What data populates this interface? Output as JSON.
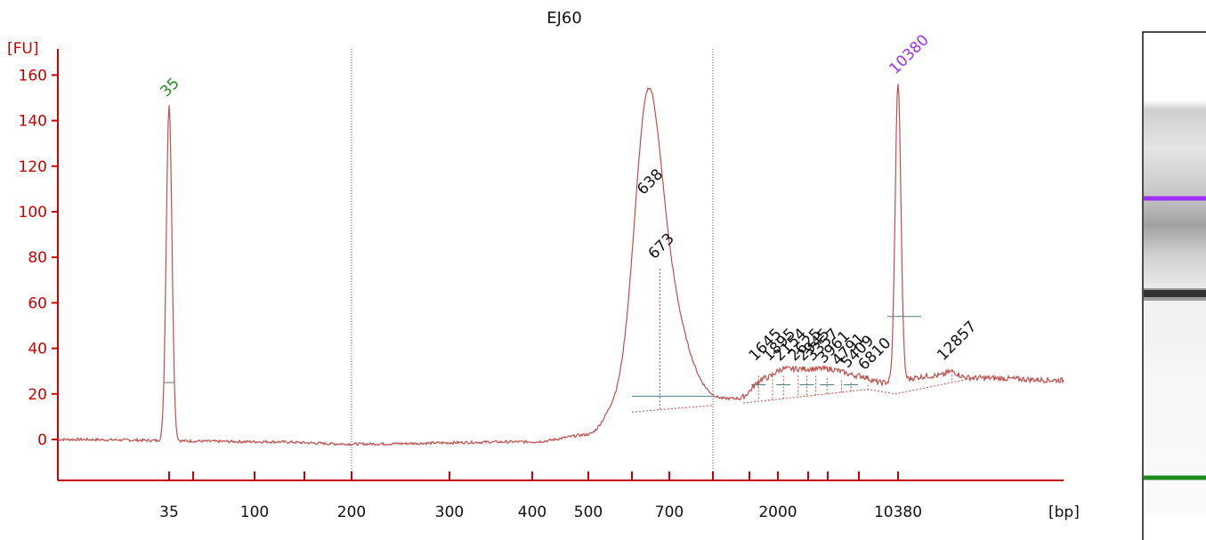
{
  "chart_data": {
    "type": "line",
    "title": "EJ60",
    "ylabel": "[FU]",
    "xlabel": "[bp]",
    "ylim": [
      -18,
      170
    ],
    "yticks": [
      0,
      20,
      40,
      60,
      80,
      100,
      120,
      140,
      160
    ],
    "x_scale": "electrophoretic ladder (non-linear)",
    "xticks": [
      "35",
      "100",
      "200",
      "300",
      "400",
      "500",
      "700",
      "2000",
      "10380"
    ],
    "grid": "vertical dotted lines at 200 bp and 1000 bp",
    "markers": [
      {
        "label": "35",
        "role": "lower marker",
        "color": "#1e8c1e",
        "height": 147
      },
      {
        "label": "10380",
        "role": "upper marker",
        "color": "#9b30ff",
        "height": 157
      }
    ],
    "peaks": [
      {
        "label": "638",
        "height": 104
      },
      {
        "label": "673",
        "height": 75
      },
      {
        "label": "1645",
        "height": 31
      },
      {
        "label": "1895",
        "height": 31
      },
      {
        "label": "2154",
        "height": 31
      },
      {
        "label": "2625",
        "height": 31
      },
      {
        "label": "2945",
        "height": 31
      },
      {
        "label": "3357",
        "height": 31
      },
      {
        "label": "3961",
        "height": 30
      },
      {
        "label": "4791",
        "height": 29
      },
      {
        "label": "5409",
        "height": 28
      },
      {
        "label": "6810",
        "height": 27
      },
      {
        "label": "12857",
        "height": 32
      }
    ],
    "trace": {
      "bp": [
        "25",
        "35",
        "60",
        "100",
        "200",
        "300",
        "400",
        "500",
        "600",
        "638",
        "673",
        "720",
        "800",
        "1000",
        "1500",
        "2000",
        "3000",
        "4000",
        "6000",
        "8000",
        "10380",
        "12000",
        "14000",
        "17000"
      ],
      "fu": [
        0,
        147,
        0,
        -1,
        -2,
        -1,
        0,
        1,
        20,
        104,
        75,
        40,
        17,
        15,
        28,
        31,
        31,
        30,
        27,
        25,
        157,
        34,
        28,
        26
      ]
    }
  },
  "gel": {
    "bands": [
      {
        "name": "upper-marker-band",
        "color": "#9b30ff"
      },
      {
        "name": "sample-band",
        "color": "#333333"
      },
      {
        "name": "lower-marker-band",
        "color": "#1e8c1e"
      }
    ]
  }
}
